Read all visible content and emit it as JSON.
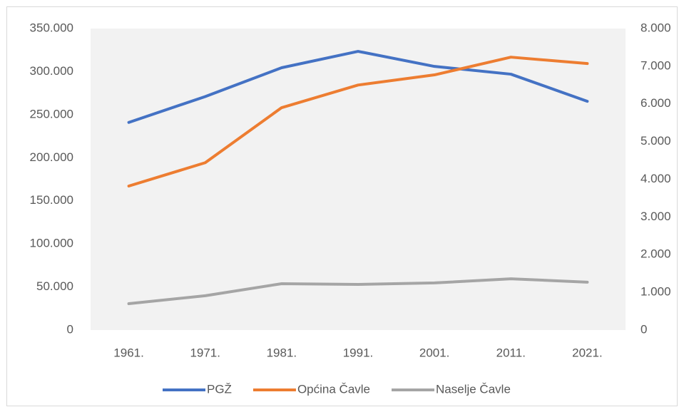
{
  "chart_data": {
    "type": "line",
    "categories": [
      "1961.",
      "1971.",
      "1981.",
      "1991.",
      "2001.",
      "2011.",
      "2021."
    ],
    "series": [
      {
        "name": "PGŽ",
        "color": "#4472c4",
        "values": [
          241000,
          271000,
          304500,
          323500,
          306000,
          297000,
          265500
        ]
      },
      {
        "name": "Općina Čavle",
        "color": "#ed7d31",
        "axis": "y2",
        "values": [
          3820,
          4440,
          5900,
          6500,
          6770,
          7240,
          7070
        ]
      },
      {
        "name": "Naselje Čavle",
        "color": "#a5a5a5",
        "axis": "y2",
        "values": [
          700,
          910,
          1230,
          1210,
          1250,
          1360,
          1270
        ]
      }
    ],
    "ylim": [
      0,
      350000
    ],
    "yticks": [
      0,
      {
        "value": 50000,
        "label": "50.000"
      },
      {
        "value": 100000,
        "label": "100.000"
      },
      {
        "value": 150000,
        "label": "150.000"
      },
      {
        "value": 200000,
        "label": "200.000"
      },
      {
        "value": 250000,
        "label": "250.000"
      },
      {
        "value": 300000,
        "label": "300.000"
      },
      {
        "value": 350000,
        "label": "350.000"
      }
    ],
    "y2lim": [
      0,
      8000
    ],
    "y2ticks": [
      0,
      {
        "value": 1000,
        "label": "1.000"
      },
      {
        "value": 2000,
        "label": "2.000"
      },
      {
        "value": 3000,
        "label": "3.000"
      },
      {
        "value": 4000,
        "label": "4.000"
      },
      {
        "value": 5000,
        "label": "5.000"
      },
      {
        "value": 6000,
        "label": "6.000"
      },
      {
        "value": 7000,
        "label": "7.000"
      },
      {
        "value": 8000,
        "label": "8.000"
      }
    ],
    "legend": "bottom"
  }
}
